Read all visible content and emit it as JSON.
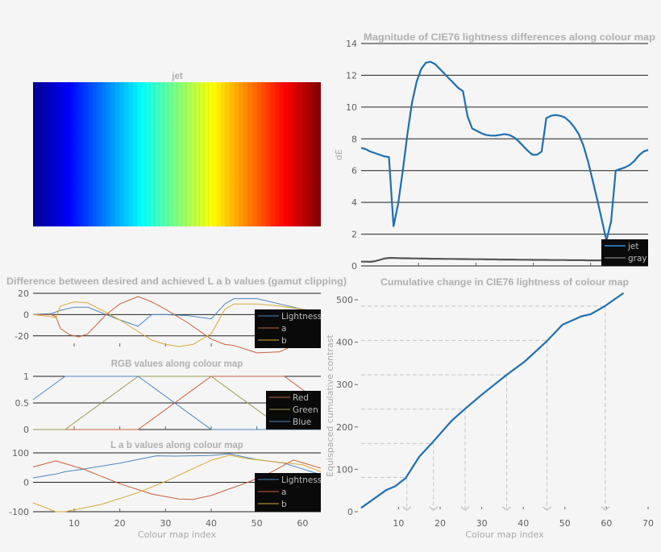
{
  "chart_data": [
    {
      "id": "jet",
      "type": "heatmap",
      "title": "jet",
      "colormap_stops": [
        "#00008f",
        "#0000ff",
        "#00ffff",
        "#ffff00",
        "#ff0000",
        "#800000"
      ],
      "entries": 64
    },
    {
      "id": "dE",
      "type": "line",
      "title": "Magnitude of CIE76 lightness differences along colour map",
      "xlabel": "",
      "ylabel": "dE",
      "xlim": [
        1,
        63
      ],
      "ylim": [
        0,
        14
      ],
      "yticks": [
        0,
        2,
        4,
        6,
        8,
        10,
        12,
        14
      ],
      "grid": true,
      "legend": "bottom-right",
      "series": [
        {
          "name": "jet",
          "color": "#1f6fb0",
          "values": [
            7.43,
            7.35,
            7.2,
            7.1,
            7.0,
            6.9,
            6.85,
            2.5,
            3.9,
            6.0,
            8.3,
            10.3,
            11.6,
            12.4,
            12.8,
            12.85,
            12.7,
            12.4,
            12.1,
            11.8,
            11.5,
            11.2,
            11.0,
            9.4,
            8.65,
            8.5,
            8.35,
            8.25,
            8.2,
            8.2,
            8.25,
            8.3,
            8.25,
            8.1,
            7.85,
            7.55,
            7.25,
            7.0,
            7.0,
            7.2,
            9.3,
            9.45,
            9.5,
            9.45,
            9.35,
            9.1,
            8.75,
            8.3,
            7.6,
            6.6,
            5.4,
            4.2,
            2.9,
            1.6,
            2.8,
            6.0,
            6.1,
            6.2,
            6.35,
            6.6,
            6.95,
            7.2,
            7.3
          ]
        },
        {
          "name": "gray",
          "color": "#555555",
          "values": [
            0.27,
            0.27,
            0.26,
            0.3,
            0.38,
            0.46,
            0.5,
            0.5,
            0.49,
            0.48,
            0.48,
            0.47,
            0.47,
            0.46,
            0.46,
            0.45,
            0.45,
            0.45,
            0.44,
            0.44,
            0.44,
            0.43,
            0.43,
            0.43,
            0.42,
            0.42,
            0.42,
            0.41,
            0.41,
            0.41,
            0.4,
            0.4,
            0.4,
            0.4,
            0.39,
            0.39,
            0.39,
            0.38,
            0.38,
            0.38,
            0.38,
            0.37,
            0.37,
            0.37,
            0.37,
            0.36,
            0.36,
            0.36,
            0.36,
            0.35,
            0.35,
            0.35,
            0.35,
            0.35,
            0.34,
            0.34,
            0.34,
            0.34,
            0.34,
            0.33,
            0.33,
            0.33,
            0.33
          ]
        }
      ]
    },
    {
      "id": "gamut",
      "type": "line",
      "title": "Difference between desired and achieved L a b values (gamut clipping)",
      "xlim": [
        1,
        64
      ],
      "ylim": [
        -30,
        20
      ],
      "yticks": [
        -20,
        0,
        20
      ],
      "xticks": [
        10,
        20,
        30,
        40,
        50,
        60
      ],
      "grid": true,
      "legend": "right",
      "series": [
        {
          "name": "Lightness",
          "color": "#4a86c0",
          "points": [
            [
              1,
              0
            ],
            [
              5,
              1
            ],
            [
              7,
              4
            ],
            [
              10,
              7
            ],
            [
              13,
              7
            ],
            [
              17,
              0
            ],
            [
              20,
              -5
            ],
            [
              24,
              -11
            ],
            [
              27,
              0
            ],
            [
              30,
              0
            ],
            [
              35,
              -1
            ],
            [
              40,
              -4
            ],
            [
              43,
              10
            ],
            [
              45,
              15
            ],
            [
              50,
              15
            ],
            [
              55,
              10
            ],
            [
              60,
              5
            ],
            [
              64,
              3
            ]
          ]
        },
        {
          "name": "a",
          "color": "#c8603a",
          "points": [
            [
              1,
              0
            ],
            [
              5,
              0
            ],
            [
              6,
              -2
            ],
            [
              7,
              -13
            ],
            [
              9,
              -19
            ],
            [
              11,
              -21
            ],
            [
              13,
              -18
            ],
            [
              17,
              0
            ],
            [
              20,
              10
            ],
            [
              24,
              17
            ],
            [
              27,
              12
            ],
            [
              30,
              5
            ],
            [
              35,
              -8
            ],
            [
              40,
              -23
            ],
            [
              43,
              -28
            ],
            [
              45,
              -29
            ],
            [
              50,
              -36
            ],
            [
              55,
              -35
            ],
            [
              60,
              -25
            ],
            [
              64,
              -10
            ]
          ]
        },
        {
          "name": "b",
          "color": "#d9a83a",
          "points": [
            [
              1,
              0
            ],
            [
              5,
              -2
            ],
            [
              6,
              -3
            ],
            [
              7,
              8
            ],
            [
              10,
              12
            ],
            [
              13,
              11
            ],
            [
              17,
              2
            ],
            [
              20,
              -5
            ],
            [
              24,
              -16
            ],
            [
              27,
              -24
            ],
            [
              30,
              -28
            ],
            [
              33,
              -30
            ],
            [
              36,
              -28
            ],
            [
              40,
              -18
            ],
            [
              43,
              5
            ],
            [
              45,
              10
            ],
            [
              50,
              10
            ],
            [
              55,
              8
            ],
            [
              60,
              5
            ],
            [
              64,
              3
            ]
          ]
        }
      ]
    },
    {
      "id": "rgb",
      "type": "line",
      "title": "RGB values along colour map",
      "xlim": [
        1,
        64
      ],
      "ylim": [
        0,
        1
      ],
      "yticks": [
        0,
        0.5,
        1
      ],
      "xticks": [
        10,
        20,
        30,
        40,
        50,
        60
      ],
      "grid": true,
      "legend": "right",
      "series": [
        {
          "name": "Red",
          "color": "#c8603a",
          "points": [
            [
              1,
              0
            ],
            [
              24,
              0
            ],
            [
              40,
              1
            ],
            [
              56,
              1
            ],
            [
              64,
              0.5
            ]
          ]
        },
        {
          "name": "Green",
          "color": "#9a9a50",
          "points": [
            [
              1,
              0
            ],
            [
              8,
              0
            ],
            [
              24,
              1
            ],
            [
              40,
              1
            ],
            [
              56,
              0
            ],
            [
              64,
              0
            ]
          ]
        },
        {
          "name": "Blue",
          "color": "#4a86c0",
          "points": [
            [
              1,
              0.56
            ],
            [
              8,
              1
            ],
            [
              24,
              1
            ],
            [
              40,
              0
            ],
            [
              64,
              0
            ]
          ]
        }
      ]
    },
    {
      "id": "lab",
      "type": "line",
      "title": "L a b values along colour map",
      "xlabel": "Colour map index",
      "xlim": [
        1,
        64
      ],
      "ylim": [
        -100,
        100
      ],
      "yticks": [
        -100,
        0,
        100
      ],
      "xticks": [
        10,
        20,
        30,
        40,
        50,
        60
      ],
      "grid": true,
      "legend": "bottom-right",
      "series": [
        {
          "name": "Lightness",
          "color": "#4a86c0",
          "points": [
            [
              1,
              15
            ],
            [
              6,
              28
            ],
            [
              8,
              36
            ],
            [
              12,
              45
            ],
            [
              20,
              65
            ],
            [
              28,
              90
            ],
            [
              32,
              89
            ],
            [
              40,
              91
            ],
            [
              44,
              97
            ],
            [
              50,
              77
            ],
            [
              56,
              65
            ],
            [
              64,
              26
            ]
          ]
        },
        {
          "name": "a",
          "color": "#c8603a",
          "points": [
            [
              1,
              52
            ],
            [
              6,
              73
            ],
            [
              12,
              45
            ],
            [
              20,
              -5
            ],
            [
              27,
              -40
            ],
            [
              33,
              -57
            ],
            [
              36,
              -58
            ],
            [
              40,
              -45
            ],
            [
              48,
              0
            ],
            [
              52,
              25
            ],
            [
              58,
              76
            ],
            [
              64,
              48
            ]
          ]
        },
        {
          "name": "b",
          "color": "#d9a83a",
          "points": [
            [
              1,
              -70
            ],
            [
              6,
              -100
            ],
            [
              8,
              -100
            ],
            [
              16,
              -75
            ],
            [
              24,
              -35
            ],
            [
              30,
              3
            ],
            [
              40,
              75
            ],
            [
              44,
              92
            ],
            [
              48,
              80
            ],
            [
              55,
              68
            ],
            [
              60,
              60
            ],
            [
              64,
              36
            ]
          ]
        }
      ]
    },
    {
      "id": "cumulative",
      "type": "line",
      "title": "Cumulative change in CIE76 lightness of colour map",
      "xlabel": "Colour map index",
      "ylabel": "Equispaced cumulative contrast",
      "xlim": [
        1,
        70
      ],
      "ylim": [
        0,
        500
      ],
      "yticks": [
        0,
        100,
        200,
        300,
        400,
        500
      ],
      "xticks": [
        10,
        20,
        30,
        40,
        50,
        60,
        70
      ],
      "grid": false,
      "series": [
        {
          "color": "#1f6fb0",
          "points": [
            [
              1,
              9
            ],
            [
              7,
              51
            ],
            [
              9.2,
              60
            ],
            [
              11.7,
              79
            ],
            [
              15,
              130
            ],
            [
              18.3,
              165
            ],
            [
              22.8,
              215
            ],
            [
              25.9,
              242
            ],
            [
              30,
              276
            ],
            [
              36,
              323
            ],
            [
              40.3,
              354
            ],
            [
              45.5,
              401
            ],
            [
              49.4,
              441
            ],
            [
              54,
              461
            ],
            [
              56.2,
              466
            ],
            [
              59.6,
              485
            ],
            [
              64.1,
              516
            ]
          ]
        }
      ],
      "guides": [
        [
          12,
          80.7
        ],
        [
          18.4,
          161
        ],
        [
          26,
          242
        ],
        [
          36,
          323
        ],
        [
          45.7,
          404
        ],
        [
          59.7,
          485
        ]
      ]
    }
  ]
}
